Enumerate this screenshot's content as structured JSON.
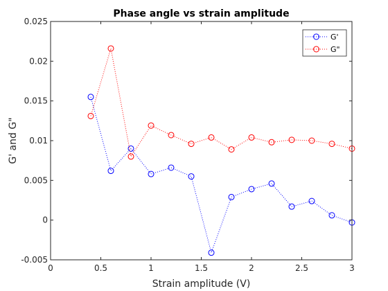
{
  "chart_data": {
    "type": "line",
    "title": "Phase angle vs strain amplitude",
    "xlabel": "Strain amplitude (V)",
    "ylabel": "G' and G\"",
    "xlim": [
      0,
      3
    ],
    "ylim": [
      -0.005,
      0.025
    ],
    "xticks": [
      0,
      0.5,
      1,
      1.5,
      2,
      2.5,
      3
    ],
    "xtick_labels": [
      "0",
      "0.5",
      "1",
      "1.5",
      "2",
      "2.5",
      "3"
    ],
    "yticks": [
      -0.005,
      0,
      0.005,
      0.01,
      0.015,
      0.02,
      0.025
    ],
    "ytick_labels": [
      "-0.005",
      "0",
      "0.005",
      "0.01",
      "0.015",
      "0.02",
      "0.025"
    ],
    "grid": false,
    "legend_position": "top-right",
    "x": [
      0.4,
      0.6,
      0.8,
      1.0,
      1.2,
      1.4,
      1.6,
      1.8,
      2.0,
      2.2,
      2.4,
      2.6,
      2.8,
      3.0
    ],
    "series": [
      {
        "name": "G'",
        "color": "#0000ff",
        "marker": "circle",
        "line_style": "dotted",
        "values": [
          0.0155,
          0.0062,
          0.009,
          0.0058,
          0.0066,
          0.0055,
          -0.0041,
          0.0029,
          0.0039,
          0.0046,
          0.0017,
          0.0024,
          0.0006,
          -0.0003
        ]
      },
      {
        "name": "G\"",
        "color": "#ff0000",
        "marker": "circle",
        "line_style": "dotted",
        "values": [
          0.0131,
          0.0216,
          0.008,
          0.0119,
          0.0107,
          0.0096,
          0.0104,
          0.0089,
          0.0104,
          0.0098,
          0.0101,
          0.01,
          0.0096,
          0.009
        ]
      }
    ]
  }
}
